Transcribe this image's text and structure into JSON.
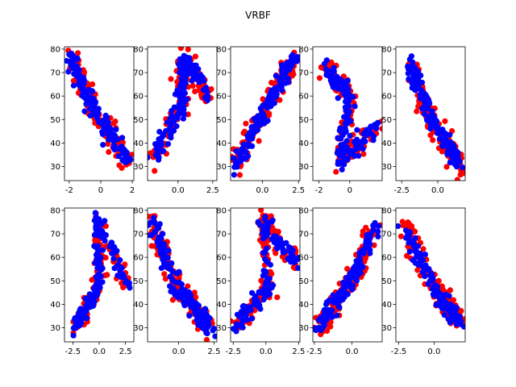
{
  "figure": {
    "title": "VRBF"
  },
  "chart_data": {
    "type": "scatter",
    "title": "VRBF",
    "colors": {
      "actual": "#ff0000",
      "predicted": "#0000ff"
    },
    "subplots": [
      {
        "id": "r1c1",
        "xlim": [
          -2.3,
          2.1
        ],
        "ylim": [
          24,
          81
        ],
        "xticks": [
          -2,
          0,
          2
        ],
        "yticks": [
          30,
          40,
          50,
          60,
          70,
          80
        ],
        "trend": [
          [
            -1.9,
            76
          ],
          [
            -0.6,
            56
          ],
          [
            1.8,
            32
          ]
        ]
      },
      {
        "id": "r1c2",
        "xlim": [
          -2.2,
          2.8
        ],
        "ylim": [
          24,
          81
        ],
        "xticks": [
          0.0,
          2.5
        ],
        "yticks": [
          30,
          40,
          50,
          60,
          70,
          80
        ],
        "trend": [
          [
            -1.9,
            32
          ],
          [
            0.3,
            55
          ],
          [
            0.4,
            76
          ],
          [
            2.3,
            60
          ]
        ]
      },
      {
        "id": "r1c3",
        "xlim": [
          -2.2,
          2.6
        ],
        "ylim": [
          24,
          81
        ],
        "xticks": [
          0.0,
          2.5
        ],
        "yticks": [
          30,
          40,
          50,
          60,
          70,
          80
        ],
        "trend": [
          [
            -1.9,
            30
          ],
          [
            0.5,
            58
          ],
          [
            2.2,
            76
          ]
        ]
      },
      {
        "id": "r1c4",
        "xlim": [
          -2.4,
          2.1
        ],
        "ylim": [
          24,
          81
        ],
        "xticks": [
          -2,
          0
        ],
        "yticks": [
          30,
          40,
          50,
          60,
          70,
          80
        ],
        "trend": [
          [
            -1.7,
            73
          ],
          [
            0.0,
            60
          ],
          [
            -0.6,
            32
          ],
          [
            1.8,
            48
          ]
        ]
      },
      {
        "id": "r1c5",
        "xlim": [
          -2.9,
          1.9
        ],
        "ylim": [
          24,
          81
        ],
        "xticks": [
          -2.5,
          0.0
        ],
        "yticks": [
          30,
          40,
          50,
          60,
          70,
          80
        ],
        "trend": [
          [
            -2.0,
            74
          ],
          [
            -0.2,
            47
          ],
          [
            1.6,
            30
          ]
        ]
      },
      {
        "id": "r2c1",
        "xlim": [
          -3.3,
          3.3
        ],
        "ylim": [
          24,
          81
        ],
        "xticks": [
          -2.5,
          0.0,
          2.5
        ],
        "yticks": [
          30,
          40,
          50,
          60,
          70,
          80
        ],
        "trend": [
          [
            -2.4,
            30
          ],
          [
            0.0,
            47
          ],
          [
            -0.2,
            76
          ],
          [
            2.8,
            48
          ]
        ]
      },
      {
        "id": "r2c2",
        "xlim": [
          -2.2,
          2.7
        ],
        "ylim": [
          24,
          81
        ],
        "xticks": [
          0.0,
          2.5
        ],
        "yticks": [
          30,
          40,
          50,
          60,
          70,
          80
        ],
        "trend": [
          [
            -1.9,
            75
          ],
          [
            0.0,
            45
          ],
          [
            2.3,
            30
          ]
        ]
      },
      {
        "id": "r2c3",
        "xlim": [
          -2.7,
          2.6
        ],
        "ylim": [
          24,
          81
        ],
        "xticks": [
          -2.5,
          0.0,
          2.5
        ],
        "yticks": [
          30,
          40,
          50,
          60,
          70,
          80
        ],
        "trend": [
          [
            -2.4,
            30
          ],
          [
            0.2,
            47
          ],
          [
            -0.3,
            76
          ],
          [
            2.3,
            58
          ]
        ]
      },
      {
        "id": "r2c4",
        "xlim": [
          -2.6,
          2.0
        ],
        "ylim": [
          24,
          81
        ],
        "xticks": [
          -2.5,
          0.0
        ],
        "yticks": [
          30,
          40,
          50,
          60,
          70,
          80
        ],
        "trend": [
          [
            -2.2,
            30
          ],
          [
            0.0,
            50
          ],
          [
            1.6,
            74
          ]
        ]
      },
      {
        "id": "r2c5",
        "xlim": [
          -2.7,
          2.2
        ],
        "ylim": [
          24,
          81
        ],
        "xticks": [
          -2.5,
          0.0
        ],
        "yticks": [
          30,
          40,
          50,
          60,
          70,
          80
        ],
        "trend": [
          [
            -2.2,
            74
          ],
          [
            0.2,
            45
          ],
          [
            1.9,
            32
          ]
        ]
      }
    ]
  }
}
